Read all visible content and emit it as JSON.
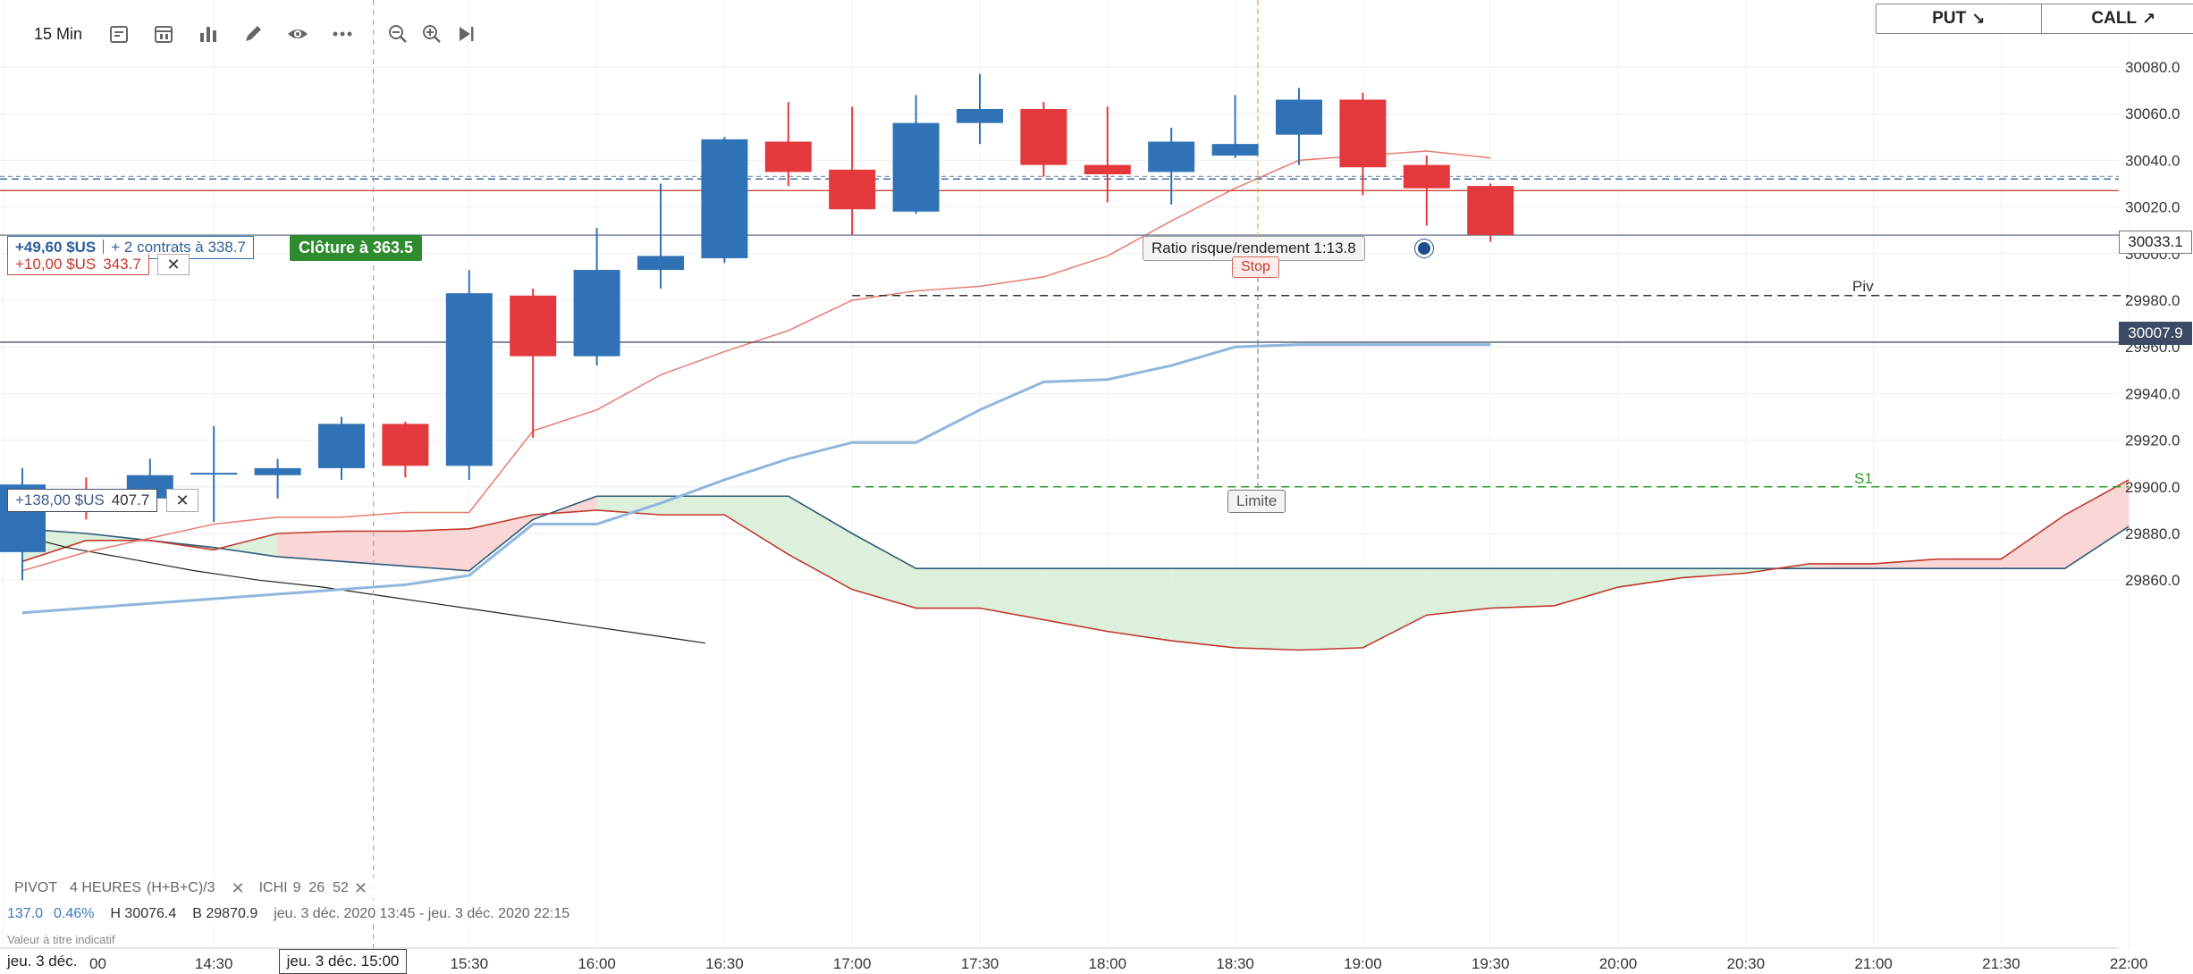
{
  "toolbar": {
    "interval": "15 Min",
    "icons": [
      "calendar-range-icon",
      "calendar-icon",
      "bar-chart-icon",
      "pencil-icon",
      "eye-icon",
      "more-icon",
      "zoom-out-icon",
      "zoom-in-icon",
      "go-to-end-icon"
    ]
  },
  "trade_buttons": {
    "put": "PUT",
    "call": "CALL",
    "put_arrow": "↘",
    "call_arrow": "↗"
  },
  "position_tags": {
    "tag1_profit": "+49,60 $US",
    "tag1_contracts": "+ 2 contrats à 338.7",
    "tag2_profit": "+10,00 $US",
    "tag2_price": "343.7",
    "tag3_profit": "+138,00 $US",
    "tag3_price": "407.7",
    "close_label": "Clôture à 363.5",
    "close_icon": "✕"
  },
  "overlays": {
    "risk_reward": "Ratio risque/rendement 1:13.8",
    "stop": "Stop",
    "limit": "Limite",
    "pivot": "Piv",
    "s1": "S1"
  },
  "price_badges": {
    "last_bid": "30033.1",
    "current": "30007.9"
  },
  "legend": {
    "pivot_label": "PIVOT",
    "pivot_params": "4 HEURES",
    "pivot_formula": "(H+B+C)/3",
    "ichi_label": "ICHI",
    "ichi_params": "9  26  52"
  },
  "stats": {
    "change": "137.0",
    "change_pct": "0.46%",
    "high": "H 30076.4",
    "low": "B 29870.9",
    "range": "jeu. 3 déc. 2020 13:45 - jeu. 3 déc. 2020 22:15"
  },
  "disclaimer": "Valeur à titre indicatif",
  "date_left": "jeu. 3 déc.",
  "date_cursor": "jeu. 3 déc. 15:00",
  "colors": {
    "up": "#2f73b6",
    "down": "#e3393c",
    "tenkan": "#e87a70",
    "kijun": "#8fb6dc",
    "pivot": "#333333",
    "s1": "#2e9e2e"
  },
  "chart_data": {
    "type": "candlestick",
    "timeframe": "15 Min",
    "x_labels": [
      "00",
      "14:30",
      "15:30",
      "16:00",
      "16:30",
      "17:00",
      "17:30",
      "18:00",
      "18:30",
      "19:00",
      "19:30",
      "20:00",
      "20:30",
      "21:00",
      "21:30",
      "22:00"
    ],
    "y_ticks": [
      29860,
      29880,
      29900,
      29920,
      29940,
      29960,
      29980,
      30000,
      30020,
      30040,
      30060,
      30080
    ],
    "ylim": [
      29852,
      30098
    ],
    "candles": [
      {
        "t": "13:45",
        "o": 29872,
        "h": 29908,
        "l": 29860,
        "c": 29901
      },
      {
        "t": "14:00",
        "o": 29899,
        "h": 29904,
        "l": 29886,
        "c": 29895
      },
      {
        "t": "14:15",
        "o": 29895,
        "h": 29912,
        "l": 29890,
        "c": 29905
      },
      {
        "t": "14:30",
        "o": 29906,
        "h": 29926,
        "l": 29885,
        "c": 29906
      },
      {
        "t": "14:45",
        "o": 29905,
        "h": 29912,
        "l": 29895,
        "c": 29908
      },
      {
        "t": "15:00",
        "o": 29908,
        "h": 29930,
        "l": 29903,
        "c": 29927
      },
      {
        "t": "15:15",
        "o": 29927,
        "h": 29928,
        "l": 29904,
        "c": 29909
      },
      {
        "t": "15:30",
        "o": 29909,
        "h": 29993,
        "l": 29903,
        "c": 29983
      },
      {
        "t": "15:45",
        "o": 29982,
        "h": 29985,
        "l": 29921,
        "c": 29956
      },
      {
        "t": "16:00",
        "o": 29956,
        "h": 30011,
        "l": 29952,
        "c": 29993
      },
      {
        "t": "16:15",
        "o": 29993,
        "h": 30030,
        "l": 29985,
        "c": 29999
      },
      {
        "t": "16:30",
        "o": 29998,
        "h": 30050,
        "l": 29996,
        "c": 30049
      },
      {
        "t": "16:45",
        "o": 30048,
        "h": 30065,
        "l": 30029,
        "c": 30035
      },
      {
        "t": "17:00",
        "o": 30036,
        "h": 30063,
        "l": 30008,
        "c": 30019
      },
      {
        "t": "17:15",
        "o": 30018,
        "h": 30068,
        "l": 30017,
        "c": 30056
      },
      {
        "t": "17:30",
        "o": 30056,
        "h": 30077,
        "l": 30047,
        "c": 30062
      },
      {
        "t": "17:45",
        "o": 30062,
        "h": 30065,
        "l": 30033,
        "c": 30038
      },
      {
        "t": "18:00",
        "o": 30038,
        "h": 30063,
        "l": 30022,
        "c": 30034
      },
      {
        "t": "18:15",
        "o": 30035,
        "h": 30054,
        "l": 30021,
        "c": 30048
      },
      {
        "t": "18:30",
        "o": 30042,
        "h": 30068,
        "l": 30041,
        "c": 30047
      },
      {
        "t": "18:45",
        "o": 30051,
        "h": 30071,
        "l": 30038,
        "c": 30066
      },
      {
        "t": "19:00",
        "o": 30066,
        "h": 30069,
        "l": 30025,
        "c": 30037
      },
      {
        "t": "19:15",
        "o": 30038,
        "h": 30042,
        "l": 30012,
        "c": 30028
      },
      {
        "t": "19:30",
        "o": 30029,
        "h": 30030,
        "l": 30005,
        "c": 30008
      }
    ],
    "levels": {
      "last_bid": 30033.1,
      "current": 30007.9,
      "stop": 30027,
      "limit": 29961,
      "pivot": 29982,
      "s1": 29900,
      "position_1": 30032,
      "position_3": 29962
    },
    "tenkan": [
      29864,
      29872,
      29878,
      29884,
      29887,
      29887,
      29889,
      29889,
      29924,
      29933,
      29948,
      29958,
      29967,
      29980,
      29984,
      29986,
      29990,
      29999,
      30014,
      30028,
      30040,
      30042,
      30044,
      30041
    ],
    "kijun": [
      29846,
      29848,
      29850,
      29852,
      29854,
      29856,
      29858,
      29862,
      29884,
      29884,
      29893,
      29903,
      29912,
      29919,
      29919,
      29933,
      29945,
      29946,
      29952,
      29960,
      29961,
      29961,
      29961,
      29961
    ],
    "span_a": [
      29882,
      29880,
      29877,
      29874,
      29870,
      29868,
      29866,
      29864,
      29886,
      29896,
      29896,
      29896,
      29896,
      29880,
      29865,
      29865,
      29865,
      29865,
      29865,
      29865,
      29865,
      29865,
      29865,
      29865,
      29865,
      29865,
      29865,
      29865,
      29865,
      29865,
      29865,
      29865,
      29865,
      29883
    ],
    "span_b": [
      29868,
      29877,
      29877,
      29873,
      29880,
      29881,
      29881,
      29882,
      29888,
      29890,
      29888,
      29888,
      29871,
      29856,
      29848,
      29848,
      29843,
      29838,
      29834,
      29831,
      29830,
      29831,
      29845,
      29848,
      29849,
      29857,
      29861,
      29863,
      29867,
      29867,
      29869,
      29869,
      29888,
      29903
    ],
    "chikou": [
      29881,
      29874,
      29869,
      29864,
      29860,
      29857,
      29853,
      29849,
      29845,
      29841,
      29837,
      29833
    ]
  }
}
